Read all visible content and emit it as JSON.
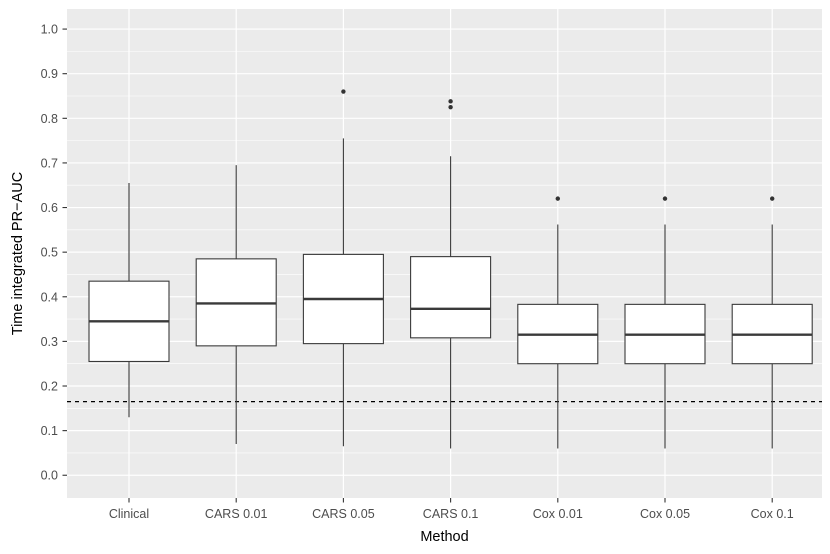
{
  "chart_data": {
    "type": "boxplot",
    "title": "",
    "xlabel": "Method",
    "ylabel": "Time integrated PR−AUC",
    "categories": [
      "Clinical",
      "CARS 0.01",
      "CARS 0.05",
      "CARS 0.1",
      "Cox 0.01",
      "Cox 0.05",
      "Cox 0.1"
    ],
    "y_ticks": [
      "0.0",
      "0.1",
      "0.2",
      "0.3",
      "0.4",
      "0.5",
      "0.6",
      "0.7",
      "0.8",
      "0.9",
      "1.0"
    ],
    "y_tick_values": [
      0.0,
      0.1,
      0.2,
      0.3,
      0.4,
      0.5,
      0.6,
      0.7,
      0.8,
      0.9,
      1.0
    ],
    "y_minor_tick_values": [
      0.05,
      0.15,
      0.25,
      0.35,
      0.45,
      0.55,
      0.65,
      0.75,
      0.85,
      0.95
    ],
    "ylim": [
      -0.051,
      1.045
    ],
    "grid": "horizontal major+minor, vertical major at category centers; ggplot grey theme",
    "legend": "none",
    "reference_line": {
      "y": 0.165,
      "style": "dashed",
      "color": "#000000"
    },
    "boxes": [
      {
        "category": "Clinical",
        "whisker_low": 0.13,
        "q1": 0.255,
        "median": 0.345,
        "q3": 0.435,
        "whisker_high": 0.655,
        "outliers": []
      },
      {
        "category": "CARS 0.01",
        "whisker_low": 0.07,
        "q1": 0.29,
        "median": 0.385,
        "q3": 0.485,
        "whisker_high": 0.695,
        "outliers": []
      },
      {
        "category": "CARS 0.05",
        "whisker_low": 0.065,
        "q1": 0.295,
        "median": 0.395,
        "q3": 0.495,
        "whisker_high": 0.755,
        "outliers": [
          0.86
        ]
      },
      {
        "category": "CARS 0.1",
        "whisker_low": 0.06,
        "q1": 0.308,
        "median": 0.373,
        "q3": 0.49,
        "whisker_high": 0.715,
        "outliers": [
          0.838,
          0.825
        ]
      },
      {
        "category": "Cox 0.01",
        "whisker_low": 0.06,
        "q1": 0.25,
        "median": 0.315,
        "q3": 0.383,
        "whisker_high": 0.562,
        "outliers": [
          0.62
        ]
      },
      {
        "category": "Cox 0.05",
        "whisker_low": 0.06,
        "q1": 0.25,
        "median": 0.315,
        "q3": 0.383,
        "whisker_high": 0.562,
        "outliers": [
          0.62
        ]
      },
      {
        "category": "Cox 0.1",
        "whisker_low": 0.06,
        "q1": 0.25,
        "median": 0.315,
        "q3": 0.383,
        "whisker_high": 0.562,
        "outliers": [
          0.62
        ]
      }
    ],
    "colors": {
      "panel_background": "#EBEBEB",
      "grid": "#FFFFFF",
      "box_stroke": "#3A3A3A",
      "box_fill": "#FFFFFF",
      "outlier": "#333333",
      "tick_label": "#4D4D4D",
      "axis_title": "#000000",
      "tick_mark": "#333333",
      "reference_line": "#000000"
    }
  }
}
